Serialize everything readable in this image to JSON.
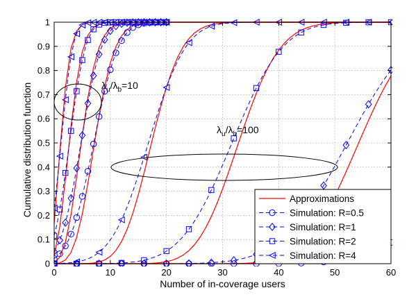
{
  "chart_data": {
    "type": "line",
    "title": "",
    "xlabel": "Number of in-coverage users",
    "ylabel": "Cumulative distribution function",
    "xlim": [
      0,
      60
    ],
    "ylim": [
      0,
      1
    ],
    "xticks": [
      "0",
      "10",
      "20",
      "30",
      "40",
      "50",
      "60"
    ],
    "yticks": [
      "0",
      "0.1",
      "0.2",
      "0.3",
      "0.4",
      "0.5",
      "0.6",
      "0.7",
      "0.8",
      "0.9",
      "1"
    ],
    "grid": true,
    "legend_position": "bottom-right",
    "legend": [
      {
        "label": "Approximations",
        "style": "solid",
        "marker": "none"
      },
      {
        "label": "Simulation: R=0.5",
        "style": "dashed",
        "marker": "circle"
      },
      {
        "label": "Simulation: R=1",
        "style": "dashed",
        "marker": "diamond"
      },
      {
        "label": "Simulation: R=2",
        "style": "dashed",
        "marker": "square"
      },
      {
        "label": "Simulation: R=4",
        "style": "dashed",
        "marker": "triangle-left"
      }
    ],
    "annotations": [
      {
        "main": "λ",
        "sub1": "u",
        "slash": "/λ",
        "sub2": "b",
        "tail": "=10"
      },
      {
        "main": "λ",
        "sub1": "u",
        "slash": "/λ",
        "sub2": "b",
        "tail": "=100"
      }
    ],
    "groups": [
      {
        "ratio": 10,
        "series": [
          {
            "R": 0.5,
            "marker": "circle",
            "mean": 7.85
          },
          {
            "R": 1,
            "marker": "diamond",
            "mean": 5.49
          },
          {
            "R": 2,
            "marker": "square",
            "mean": 3.35
          },
          {
            "R": 4,
            "marker": "triangle-left",
            "mean": 1.8
          }
        ]
      },
      {
        "ratio": 100,
        "series": [
          {
            "R": 0.5,
            "marker": "circle",
            "mean": 78.5
          },
          {
            "R": 1,
            "marker": "diamond",
            "mean": 54.9
          },
          {
            "R": 2,
            "marker": "square",
            "mean": 33.5
          },
          {
            "R": 4,
            "marker": "triangle-left",
            "mean": 18.0
          }
        ]
      }
    ],
    "colors": {
      "approximation": "#ff0000",
      "simulation": "#0000ff",
      "axes": "#000000",
      "grid": "#bfbfbf",
      "ellipse": "#000000"
    }
  }
}
